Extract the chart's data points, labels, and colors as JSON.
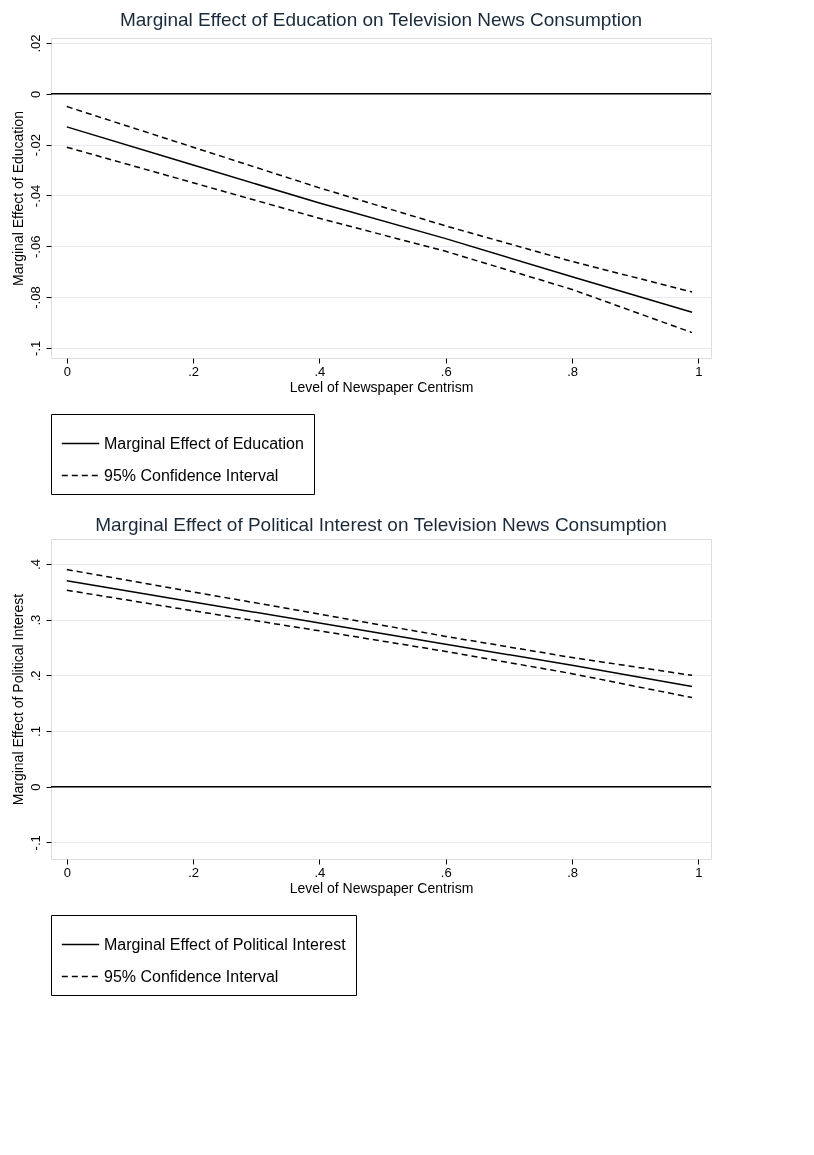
{
  "chart_data": [
    {
      "type": "line",
      "title": "Marginal Effect of Education on Television News Consumption",
      "xlabel": "Level of Newspaper Centrism",
      "ylabel": "Marginal Effect of Education",
      "x": [
        0,
        0.2,
        0.4,
        0.6,
        0.8,
        0.99
      ],
      "series": [
        {
          "name": "Marginal Effect of Education",
          "color": "#000000",
          "line_style": "solid",
          "values": [
            -0.013,
            -0.028,
            -0.043,
            -0.057,
            -0.072,
            -0.086
          ]
        },
        {
          "name": "95% Confidence Interval",
          "color": "#000000",
          "line_style": "dashed",
          "values": [
            -0.005,
            -0.021,
            -0.037,
            -0.052,
            -0.066,
            -0.078
          ]
        },
        {
          "color": "#000000",
          "line_style": "dashed",
          "values": [
            -0.021,
            -0.035,
            -0.049,
            -0.062,
            -0.077,
            -0.094
          ]
        }
      ],
      "xlim": [
        -0.025,
        1.02
      ],
      "xticks": [
        0,
        {
          "value": 0.2,
          "label": ".2"
        },
        {
          "value": 0.4,
          "label": ".4"
        },
        {
          "value": 0.6,
          "label": ".6"
        },
        {
          "value": 0.8,
          "label": ".8"
        },
        1
      ],
      "ylim": [
        -0.104,
        0.022
      ],
      "yticks": [
        {
          "value": -0.1,
          "label": "-.1"
        },
        {
          "value": -0.08,
          "label": "-.08"
        },
        {
          "value": -0.06,
          "label": "-.06"
        },
        {
          "value": -0.04,
          "label": "-.04"
        },
        {
          "value": -0.02,
          "label": "-.02"
        },
        0,
        {
          "value": 0.02,
          "label": ".02"
        }
      ],
      "ref_lines": [
        {
          "axis": "y",
          "value": 0,
          "color": "#000000"
        }
      ],
      "grid": "y",
      "legend": "bottom",
      "marker": "none"
    },
    {
      "type": "line",
      "title": "Marginal Effect of Political Interest on Television News Consumption",
      "xlabel": "Level of Newspaper Centrism",
      "ylabel": "Marginal Effect of Political Interest",
      "x": [
        0,
        0.2,
        0.4,
        0.6,
        0.8,
        0.99
      ],
      "series": [
        {
          "name": "Marginal Effect of Political Interest",
          "color": "#000000",
          "line_style": "solid",
          "values": [
            0.37,
            0.332,
            0.294,
            0.256,
            0.218,
            0.18
          ]
        },
        {
          "name": "95% Confidence Interval",
          "color": "#000000",
          "line_style": "dashed",
          "values": [
            0.39,
            0.35,
            0.31,
            0.27,
            0.232,
            0.2
          ]
        },
        {
          "color": "#000000",
          "line_style": "dashed",
          "values": [
            0.353,
            0.316,
            0.28,
            0.243,
            0.203,
            0.16
          ]
        }
      ],
      "xlim": [
        -0.025,
        1.02
      ],
      "xticks": [
        0,
        {
          "value": 0.2,
          "label": ".2"
        },
        {
          "value": 0.4,
          "label": ".4"
        },
        {
          "value": 0.6,
          "label": ".6"
        },
        {
          "value": 0.8,
          "label": ".8"
        },
        1
      ],
      "ylim": [
        -0.13,
        0.445
      ],
      "yticks": [
        {
          "value": -0.1,
          "label": "-.1"
        },
        0,
        {
          "value": 0.1,
          "label": ".1"
        },
        {
          "value": 0.2,
          "label": ".2"
        },
        {
          "value": 0.3,
          "label": ".3"
        },
        {
          "value": 0.4,
          "label": ".4"
        }
      ],
      "ref_lines": [
        {
          "axis": "y",
          "value": 0,
          "color": "#000000"
        }
      ],
      "grid": "y",
      "legend": "bottom",
      "marker": "none"
    }
  ]
}
